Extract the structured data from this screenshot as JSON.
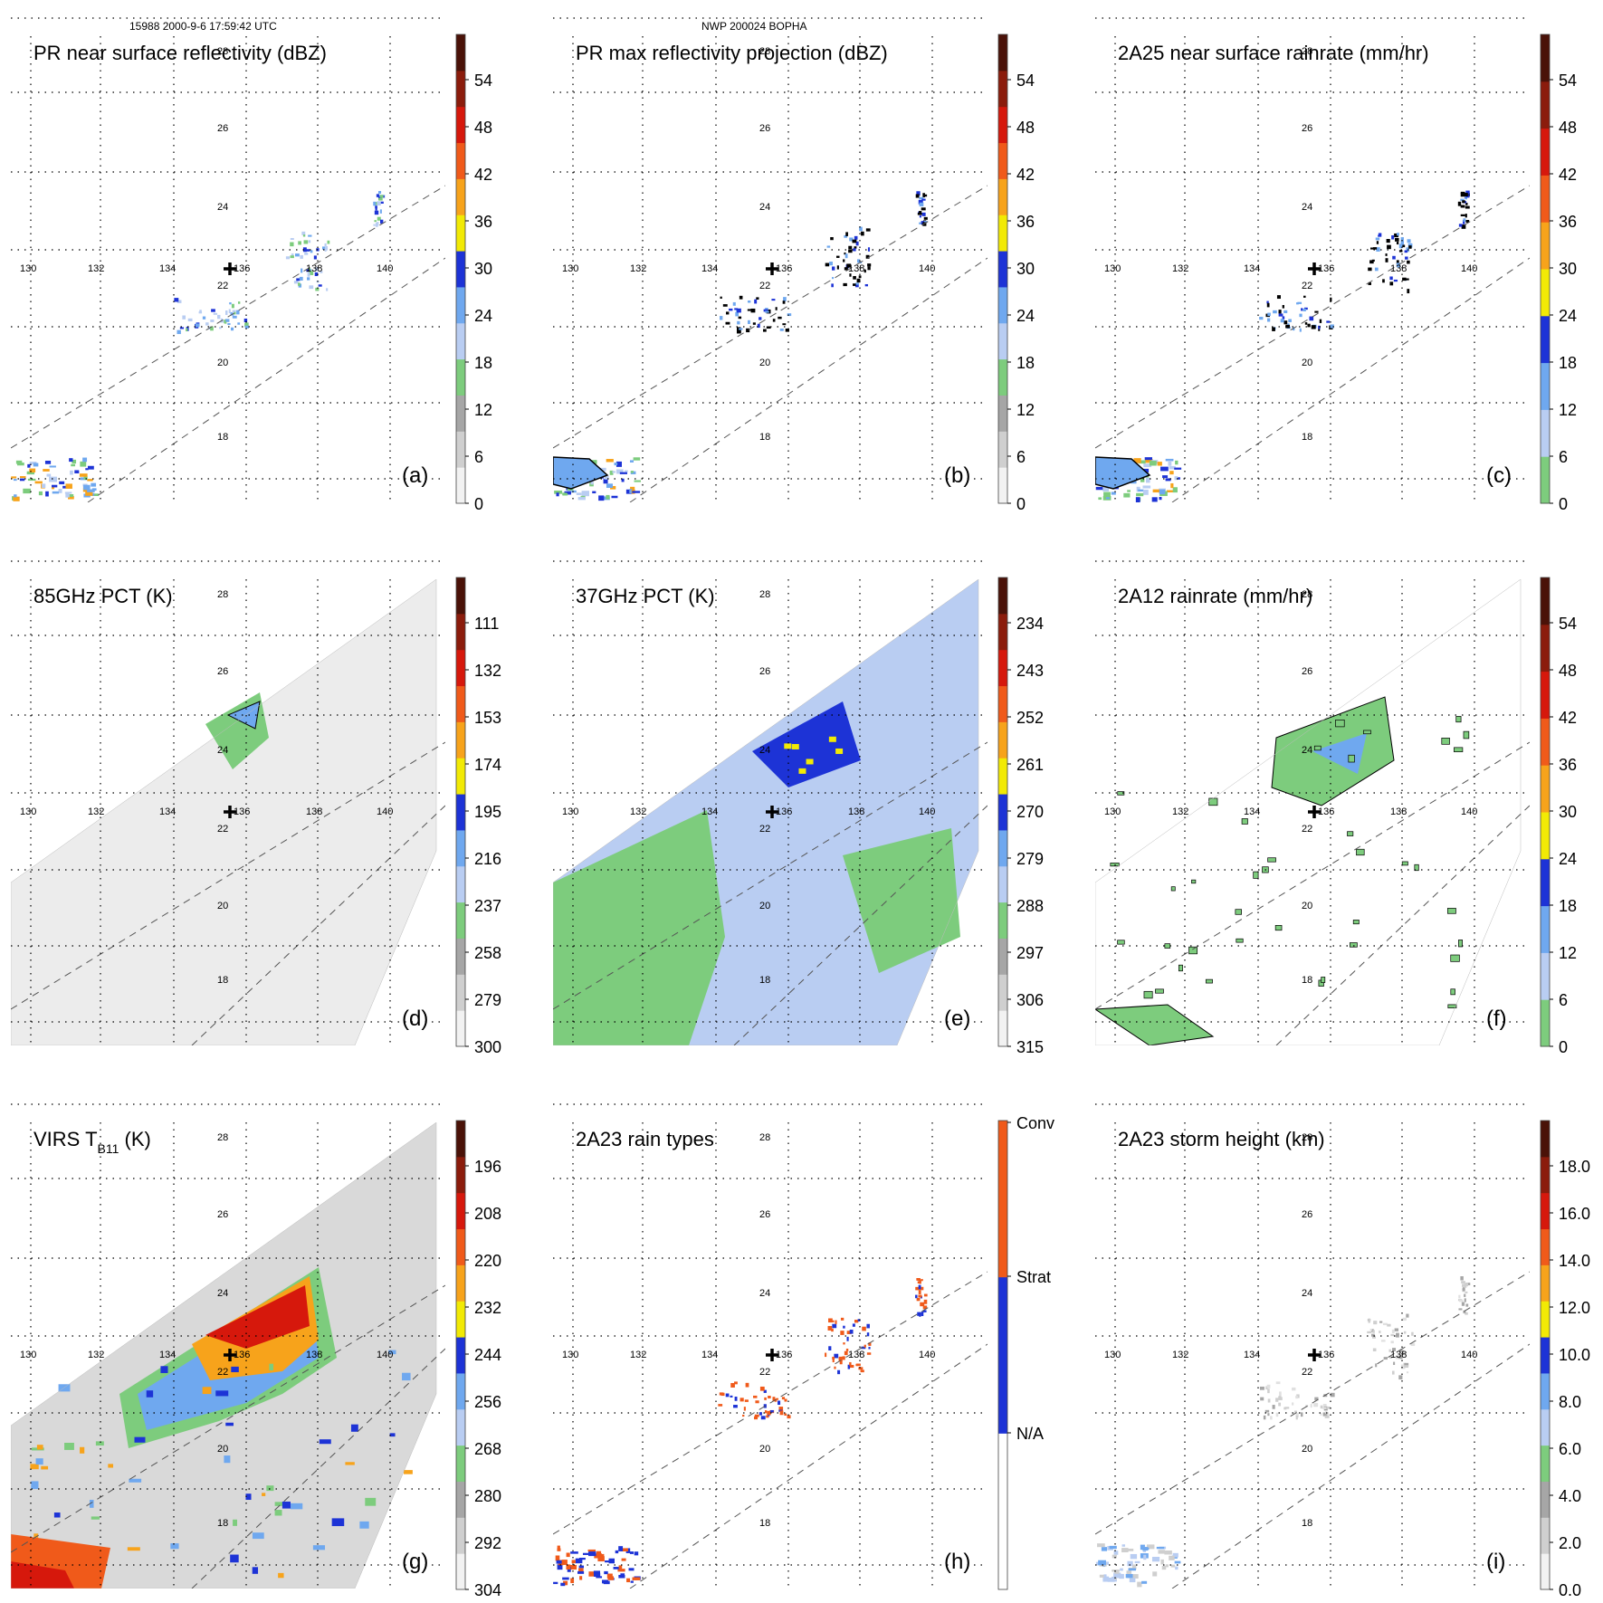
{
  "header": {
    "left": "15988 2000-9-6 17:59:42 UTC",
    "center": "NWP 200024 BOPHA"
  },
  "chart_data": [
    {
      "id": "a",
      "type": "heatmap",
      "label": "(a)",
      "title": "PR near surface reflectivity (dBZ)",
      "colorbar": {
        "ticks": [
          "0",
          "6",
          "12",
          "18",
          "24",
          "30",
          "36",
          "42",
          "48",
          "54"
        ],
        "colors": [
          "#f2f2f2",
          "#cfcfcf",
          "#a6a6a6",
          "#7dcc7d",
          "#b9cdf2",
          "#6fa8ef",
          "#1d33d6",
          "#f2ea05",
          "#f7a31b",
          "#f05a1a",
          "#d6180c",
          "#8b1c0c",
          "#4a1208"
        ]
      },
      "lon_ticks": [
        "130",
        "132",
        "134",
        "136",
        "138",
        "140"
      ],
      "lat_ticks": [
        "18",
        "20",
        "22",
        "24",
        "26",
        "28"
      ],
      "swath": "narrow",
      "fill": "sparse-reflectivity"
    },
    {
      "id": "b",
      "type": "heatmap",
      "label": "(b)",
      "title": "PR max reflectivity projection (dBZ)",
      "colorbar": {
        "ticks": [
          "0",
          "6",
          "12",
          "18",
          "24",
          "30",
          "36",
          "42",
          "48",
          "54"
        ],
        "colors": [
          "#f2f2f2",
          "#cfcfcf",
          "#a6a6a6",
          "#7dcc7d",
          "#b9cdf2",
          "#6fa8ef",
          "#1d33d6",
          "#f2ea05",
          "#f7a31b",
          "#f05a1a",
          "#d6180c",
          "#8b1c0c",
          "#4a1208"
        ]
      },
      "lon_ticks": [
        "130",
        "132",
        "134",
        "136",
        "138",
        "140"
      ],
      "lat_ticks": [
        "18",
        "20",
        "22",
        "24",
        "26",
        "28"
      ],
      "swath": "narrow",
      "fill": "sparse-contour"
    },
    {
      "id": "c",
      "type": "heatmap",
      "label": "(c)",
      "title": "2A25 near surface rainrate (mm/hr)",
      "colorbar": {
        "ticks": [
          "0",
          "6",
          "12",
          "18",
          "24",
          "30",
          "36",
          "42",
          "48",
          "54"
        ],
        "colors": [
          "#7dcc7d",
          "#b9cdf2",
          "#6fa8ef",
          "#1d33d6",
          "#f2ea05",
          "#f7a31b",
          "#f05a1a",
          "#d6180c",
          "#8b1c0c",
          "#4a1208"
        ]
      },
      "lon_ticks": [
        "130",
        "132",
        "134",
        "136",
        "138",
        "140"
      ],
      "lat_ticks": [
        "18",
        "20",
        "22",
        "24",
        "26",
        "28"
      ],
      "swath": "narrow",
      "fill": "sparse-contour"
    },
    {
      "id": "d",
      "type": "heatmap",
      "label": "(d)",
      "title": "85GHz PCT (K)",
      "colorbar": {
        "ticks": [
          "300",
          "279",
          "258",
          "237",
          "216",
          "195",
          "174",
          "153",
          "132",
          "111"
        ],
        "colors": [
          "#f2f2f2",
          "#cfcfcf",
          "#a6a6a6",
          "#7dcc7d",
          "#b9cdf2",
          "#6fa8ef",
          "#1d33d6",
          "#f2ea05",
          "#f7a31b",
          "#f05a1a",
          "#d6180c",
          "#8b1c0c",
          "#4a1208"
        ]
      },
      "lon_ticks": [
        "130",
        "132",
        "134",
        "136",
        "138",
        "140"
      ],
      "lat_ticks": [
        "18",
        "20",
        "22",
        "24",
        "26",
        "28"
      ],
      "swath": "wide",
      "fill": "light-gray"
    },
    {
      "id": "e",
      "type": "heatmap",
      "label": "(e)",
      "title": "37GHz PCT (K)",
      "colorbar": {
        "ticks": [
          "315",
          "306",
          "297",
          "288",
          "279",
          "270",
          "261",
          "252",
          "243",
          "234"
        ],
        "colors": [
          "#f2f2f2",
          "#cfcfcf",
          "#a6a6a6",
          "#7dcc7d",
          "#b9cdf2",
          "#6fa8ef",
          "#1d33d6",
          "#f2ea05",
          "#f7a31b",
          "#f05a1a",
          "#d6180c",
          "#8b1c0c",
          "#4a1208"
        ]
      },
      "lon_ticks": [
        "130",
        "132",
        "134",
        "136",
        "138",
        "140"
      ],
      "lat_ticks": [
        "18",
        "20",
        "22",
        "24",
        "26",
        "28"
      ],
      "swath": "wide",
      "fill": "green-blue"
    },
    {
      "id": "f",
      "type": "heatmap",
      "label": "(f)",
      "title": "2A12 rainrate (mm/hr)",
      "colorbar": {
        "ticks": [
          "0",
          "6",
          "12",
          "18",
          "24",
          "30",
          "36",
          "42",
          "48",
          "54"
        ],
        "colors": [
          "#7dcc7d",
          "#b9cdf2",
          "#6fa8ef",
          "#1d33d6",
          "#f2ea05",
          "#f7a31b",
          "#f05a1a",
          "#d6180c",
          "#8b1c0c",
          "#4a1208"
        ]
      },
      "lon_ticks": [
        "130",
        "132",
        "134",
        "136",
        "138",
        "140"
      ],
      "lat_ticks": [
        "18",
        "20",
        "22",
        "24",
        "26",
        "28"
      ],
      "swath": "wide",
      "fill": "sparse-green"
    },
    {
      "id": "g",
      "type": "heatmap",
      "label": "(g)",
      "title": "VIRS T",
      "title_sub": "B11",
      "title_unit": " (K)",
      "colorbar": {
        "ticks": [
          "304",
          "292",
          "280",
          "268",
          "256",
          "244",
          "232",
          "220",
          "208",
          "196"
        ],
        "colors": [
          "#f2f2f2",
          "#cfcfcf",
          "#a6a6a6",
          "#7dcc7d",
          "#b9cdf2",
          "#6fa8ef",
          "#1d33d6",
          "#f2ea05",
          "#f7a31b",
          "#f05a1a",
          "#d6180c",
          "#8b1c0c",
          "#4a1208"
        ]
      },
      "lon_ticks": [
        "130",
        "132",
        "134",
        "136",
        "138",
        "140"
      ],
      "lat_ticks": [
        "18",
        "20",
        "22",
        "24",
        "26",
        "28"
      ],
      "swath": "wide",
      "fill": "ir"
    },
    {
      "id": "h",
      "type": "heatmap",
      "label": "(h)",
      "title": "2A23 rain types",
      "colorbar": {
        "ticks": [
          "N/A",
          "Strat",
          "Conv"
        ],
        "colors": [
          "#ffffff",
          "#1d33d6",
          "#f05a1a"
        ]
      },
      "lon_ticks": [
        "130",
        "132",
        "134",
        "136",
        "138",
        "140"
      ],
      "lat_ticks": [
        "18",
        "20",
        "22",
        "24",
        "26",
        "28"
      ],
      "swath": "narrow",
      "fill": "rain-types"
    },
    {
      "id": "i",
      "type": "heatmap",
      "label": "(i)",
      "title": "2A23 storm height (km)",
      "colorbar": {
        "ticks": [
          "0.0",
          "2.0",
          "4.0",
          "6.0",
          "8.0",
          "10.0",
          "12.0",
          "14.0",
          "16.0",
          "18.0"
        ],
        "colors": [
          "#f2f2f2",
          "#cfcfcf",
          "#a6a6a6",
          "#7dcc7d",
          "#b9cdf2",
          "#6fa8ef",
          "#1d33d6",
          "#f2ea05",
          "#f7a31b",
          "#f05a1a",
          "#d6180c",
          "#8b1c0c",
          "#4a1208"
        ]
      },
      "lon_ticks": [
        "130",
        "132",
        "134",
        "136",
        "138",
        "140"
      ],
      "lat_ticks": [
        "18",
        "20",
        "22",
        "24",
        "26",
        "28"
      ],
      "swath": "narrow",
      "fill": "sparse-gray"
    }
  ]
}
